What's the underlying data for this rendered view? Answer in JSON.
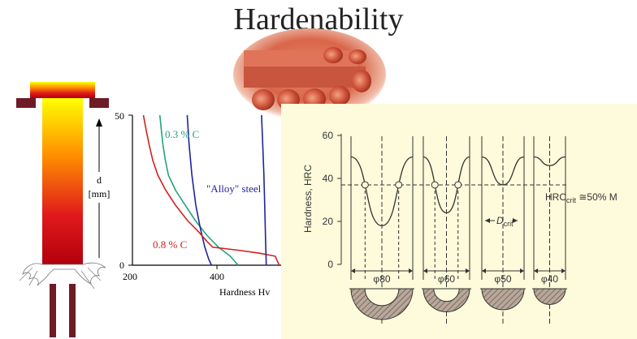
{
  "slide": {
    "title": "Hardenability"
  },
  "jominy_bar": {
    "colors": [
      "#ffff00",
      "#ff8c00",
      "#e0191c",
      "#b0000c"
    ]
  },
  "profile_chart": {
    "y_axis": {
      "label_d": "d",
      "label_unit": "[mm]",
      "tick_top": "50",
      "tick_bottom": "0",
      "range": [
        0,
        50
      ]
    },
    "x_axis": {
      "label": "Hardness Hv",
      "ticks": [
        "200",
        "400"
      ],
      "range": [
        200,
        580
      ]
    },
    "curves": [
      {
        "label": "0.3 % C",
        "color": "#21a37a",
        "points": [
          [
            270,
            50
          ],
          [
            274,
            45
          ],
          [
            278,
            40
          ],
          [
            284,
            35
          ],
          [
            292,
            30
          ],
          [
            310,
            25
          ],
          [
            335,
            20
          ],
          [
            360,
            15
          ],
          [
            390,
            10
          ],
          [
            420,
            6
          ],
          [
            450,
            3
          ],
          [
            470,
            0
          ]
        ]
      },
      {
        "label": "\"Alloy\" steel",
        "color": "#22229c",
        "points": [
          [
            340,
            50
          ],
          [
            345,
            40
          ],
          [
            352,
            30
          ],
          [
            362,
            20
          ],
          [
            374,
            12
          ],
          [
            385,
            6
          ],
          [
            395,
            2
          ],
          [
            402,
            0
          ]
        ]
      },
      {
        "label": "0.8 % C",
        "color": "#d22020",
        "points": [
          [
            228,
            50
          ],
          [
            235,
            45
          ],
          [
            243,
            40
          ],
          [
            252,
            35
          ],
          [
            265,
            30
          ],
          [
            285,
            25
          ],
          [
            310,
            20
          ],
          [
            340,
            15
          ],
          [
            370,
            11
          ],
          [
            390,
            8
          ],
          [
            405,
            6
          ],
          [
            470,
            5
          ],
          [
            525,
            4
          ],
          [
            565,
            3
          ],
          [
            575,
            0
          ]
        ]
      },
      {
        "label": "",
        "color": "#22229c",
        "points": [
          [
            530,
            50
          ],
          [
            533,
            40
          ],
          [
            536,
            30
          ],
          [
            538,
            20
          ],
          [
            540,
            10
          ],
          [
            542,
            0
          ]
        ]
      }
    ]
  },
  "hrc_chart": {
    "y_axis": {
      "label": "Hardness, HRC",
      "ticks": [
        "60",
        "40",
        "20",
        "0"
      ],
      "range": [
        0,
        65
      ]
    },
    "critical_label": "HRC",
    "critical_sub": "crit",
    "critical_rest": " ≅50% M",
    "critical_value": 37,
    "dcrit_label": "D",
    "dcrit_sub": "crit",
    "diameters": [
      {
        "label": "φ80",
        "edge_hrc": 50,
        "center_hrc": 18
      },
      {
        "label": "φ60",
        "edge_hrc": 50,
        "center_hrc": 24
      },
      {
        "label": "φ50",
        "edge_hrc": 50,
        "center_hrc": 37
      },
      {
        "label": "φ40",
        "edge_hrc": 50,
        "center_hrc": 46
      }
    ]
  }
}
